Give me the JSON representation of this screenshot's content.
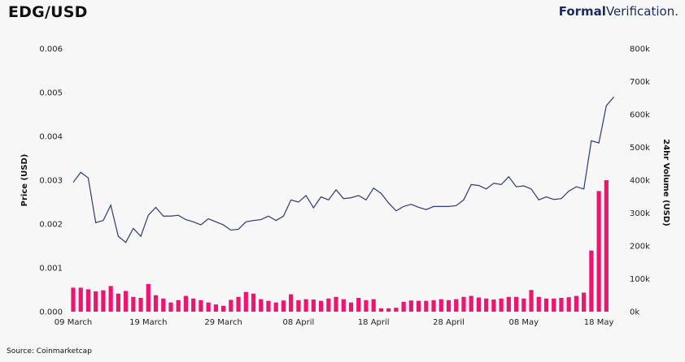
{
  "header": {
    "title": "EDG/USD",
    "brand_bold": "Formal",
    "brand_regular": "Verification."
  },
  "footer": {
    "source": "Source: Coinmarketcap"
  },
  "colors": {
    "price_line": "#2b3a7a",
    "volume_bar": "#f0146f",
    "background": "#f7f7f7",
    "brand": "#1b2a5e"
  },
  "chart_data": {
    "type": "line",
    "title": "EDG/USD",
    "ylabel": "Price (USD)",
    "y2label": "24hr Volume (USD)",
    "ylim": [
      0,
      0.006
    ],
    "y2lim": [
      0,
      800000
    ],
    "y_ticks": [
      "0.000",
      "0.001",
      "0.002",
      "0.003",
      "0.004",
      "0.005",
      "0.006"
    ],
    "y2_ticks": [
      "0k",
      "100k",
      "200k",
      "300k",
      "400k",
      "500k",
      "600k",
      "700k",
      "800k"
    ],
    "x_ticks": [
      {
        "label": "09 March",
        "day": 0
      },
      {
        "label": "19 March",
        "day": 10
      },
      {
        "label": "29 March",
        "day": 20
      },
      {
        "label": "08 April",
        "day": 30
      },
      {
        "label": "18 April",
        "day": 40
      },
      {
        "label": "28 April",
        "day": 50
      },
      {
        "label": "08 May",
        "day": 60
      },
      {
        "label": "18 May",
        "day": 70
      }
    ],
    "grid": false,
    "series": [
      {
        "kind": "line",
        "axis": "left",
        "values": [
          0.00295,
          0.00318,
          0.00305,
          0.00203,
          0.00208,
          0.00243,
          0.00172,
          0.00158,
          0.0019,
          0.00172,
          0.0022,
          0.00238,
          0.00218,
          0.00218,
          0.0022,
          0.0021,
          0.00205,
          0.00198,
          0.00212,
          0.00205,
          0.00198,
          0.00186,
          0.00188,
          0.00205,
          0.00208,
          0.0021,
          0.00218,
          0.00208,
          0.00218,
          0.00255,
          0.0025,
          0.00265,
          0.00237,
          0.00262,
          0.00255,
          0.00278,
          0.00258,
          0.0026,
          0.00265,
          0.00255,
          0.00282,
          0.0027,
          0.00248,
          0.0023,
          0.0024,
          0.00245,
          0.00238,
          0.00233,
          0.0024,
          0.0024,
          0.0024,
          0.00242,
          0.00255,
          0.0029,
          0.00288,
          0.0028,
          0.00293,
          0.0029,
          0.00308,
          0.00285,
          0.00287,
          0.0028,
          0.00255,
          0.00262,
          0.00256,
          0.00258,
          0.00275,
          0.00285,
          0.0028,
          0.0039,
          0.00385,
          0.0047,
          0.0049
        ]
      },
      {
        "kind": "bar",
        "axis": "right",
        "values": [
          73000,
          73000,
          68000,
          62000,
          65000,
          78000,
          55000,
          63000,
          45000,
          42000,
          84000,
          50000,
          40000,
          28000,
          35000,
          48000,
          40000,
          35000,
          28000,
          22000,
          18000,
          36000,
          45000,
          60000,
          55000,
          38000,
          33000,
          28000,
          34000,
          53000,
          35000,
          38000,
          37000,
          33000,
          40000,
          45000,
          38000,
          28000,
          42000,
          35000,
          38000,
          10000,
          10000,
          12000,
          30000,
          34000,
          33000,
          33000,
          35000,
          38000,
          35000,
          38000,
          45000,
          48000,
          43000,
          40000,
          37000,
          40000,
          45000,
          45000,
          40000,
          66000,
          45000,
          40000,
          40000,
          42000,
          44000,
          48000,
          58000,
          186000,
          367000,
          400000
        ]
      }
    ]
  }
}
